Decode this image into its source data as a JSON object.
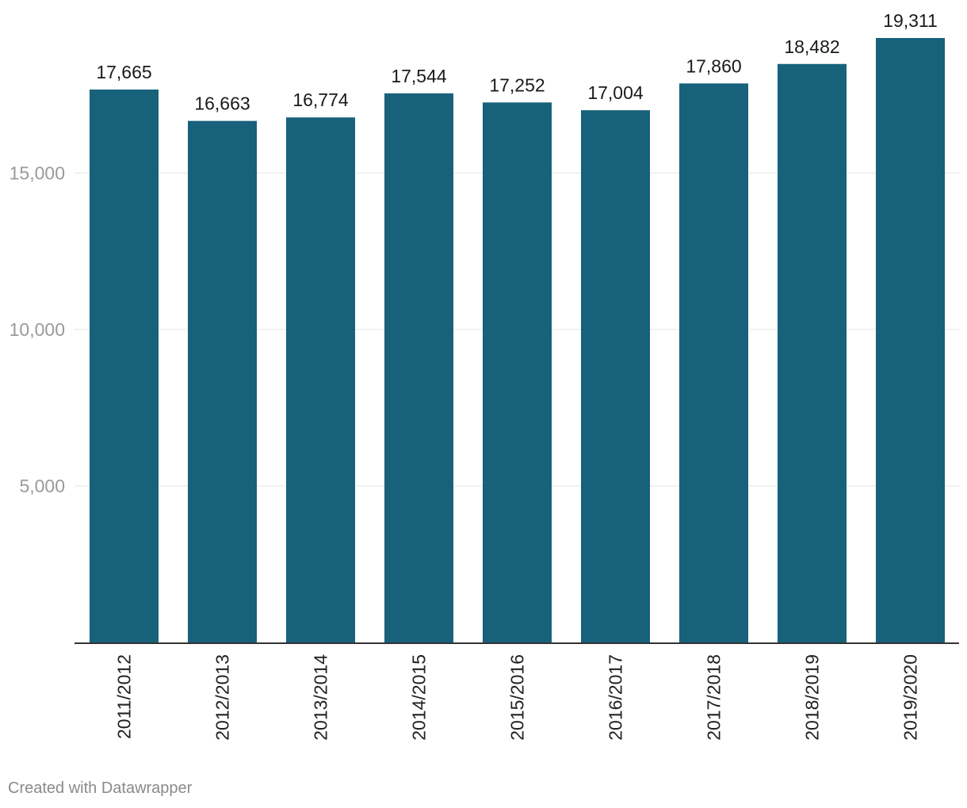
{
  "chart_data": {
    "type": "bar",
    "title": "",
    "xlabel": "",
    "ylabel": "",
    "categories": [
      "2011/2012",
      "2012/2013",
      "2013/2014",
      "2014/2015",
      "2015/2016",
      "2016/2017",
      "2017/2018",
      "2018/2019",
      "2019/2020"
    ],
    "values": [
      17665,
      16663,
      16774,
      17544,
      17252,
      17004,
      17860,
      18482,
      19311
    ],
    "value_labels": [
      "17,665",
      "16,663",
      "16,774",
      "17,544",
      "17,252",
      "17,004",
      "17,860",
      "18,482",
      "19,311"
    ],
    "y_ticks": [
      5000,
      10000,
      15000
    ],
    "y_tick_labels": [
      "5,000",
      "10,000",
      "15,000"
    ],
    "ylim": [
      0,
      19311
    ],
    "grid": true,
    "legend": "none",
    "bar_color": "#17617a"
  },
  "footer": {
    "credit": "Created with Datawrapper"
  }
}
